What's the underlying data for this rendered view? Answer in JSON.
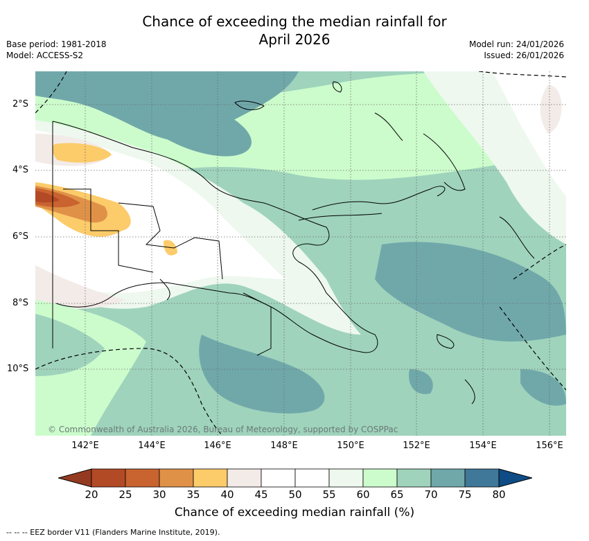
{
  "title_line1": "Chance of exceeding the median rainfall for",
  "title_line2": "April 2026",
  "base_period": "Base period: 1981-2018",
  "model": "Model: ACCESS-S2",
  "model_run": "Model run: 24/01/2026",
  "issued": "Issued: 26/01/2026",
  "copyright": "© Commonwealth of Australia 2026, Bureau of Meteorology, supported by COSPPac",
  "lat_labels": [
    "2°S",
    "4°S",
    "6°S",
    "8°S",
    "10°S"
  ],
  "lon_labels": [
    "142°E",
    "144°E",
    "146°E",
    "148°E",
    "150°E",
    "152°E",
    "154°E",
    "156°E"
  ],
  "colorbar": {
    "ticks": [
      "20",
      "25",
      "30",
      "35",
      "40",
      "45",
      "50",
      "55",
      "60",
      "65",
      "70",
      "75",
      "80"
    ],
    "colors": [
      "#b34a26",
      "#c9632f",
      "#e09148",
      "#fccb6a",
      "#f2ebe8",
      "#ffffff",
      "#ffffff",
      "#eef8ee",
      "#ccfccc",
      "#9fd3bc",
      "#70a8aa",
      "#3f7898"
    ],
    "under_color": "#943a21",
    "over_color": "#0f4c85",
    "label": "Chance of exceeding median rainfall (%)"
  },
  "footer": "--  --  -- EEZ border V11 (Flanders Marine Institute, 2019)."
}
